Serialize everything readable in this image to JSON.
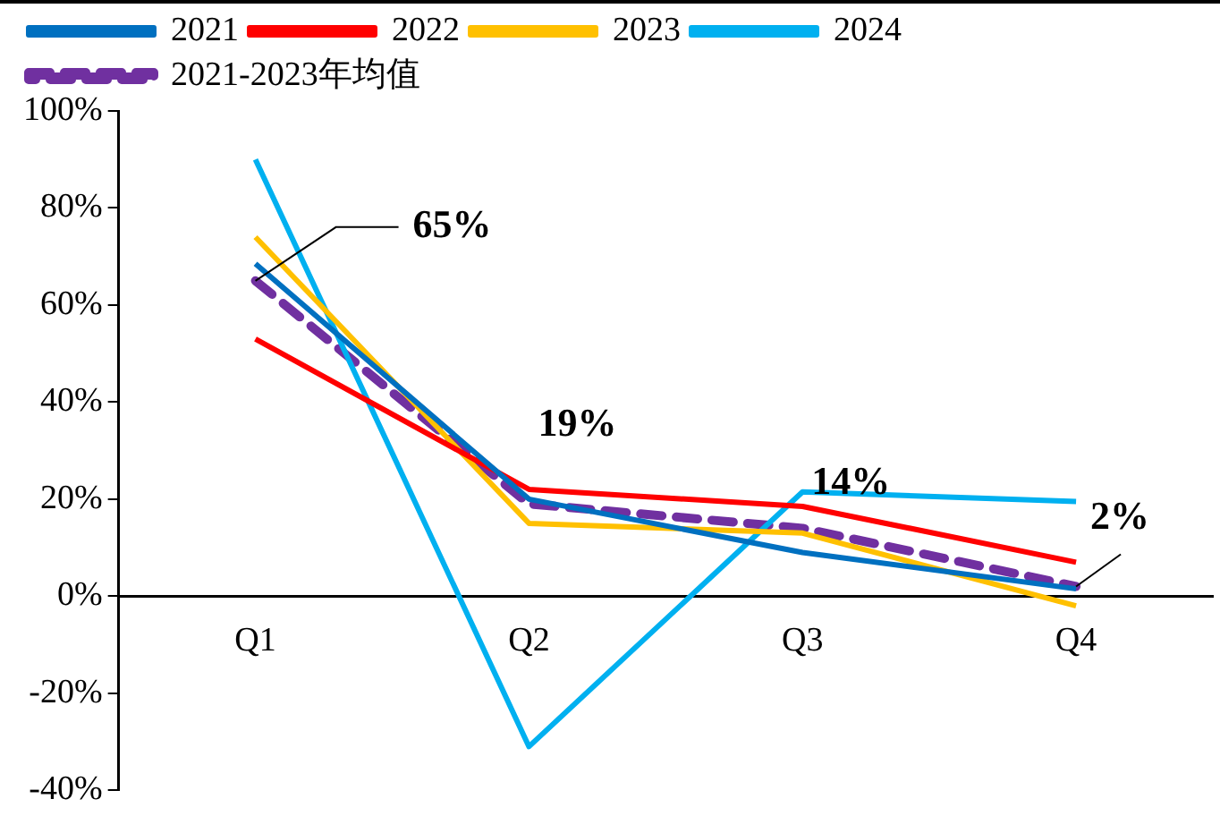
{
  "chart_data": {
    "type": "line",
    "categories": [
      "Q1",
      "Q2",
      "Q3",
      "Q4"
    ],
    "series": [
      {
        "name": "2021",
        "color": "#0070c0",
        "values": [
          68.5,
          20,
          9,
          1.5
        ]
      },
      {
        "name": "2022",
        "color": "#ff0000",
        "values": [
          53,
          22,
          18.5,
          7
        ]
      },
      {
        "name": "2023",
        "color": "#ffc000",
        "values": [
          74,
          15,
          13,
          -2
        ]
      },
      {
        "name": "2024",
        "color": "#00b0f0",
        "values": [
          90,
          -31,
          21.5,
          19.5
        ]
      },
      {
        "name": "2021-2023年均值",
        "color": "#7030a0",
        "values": [
          65,
          19,
          14,
          2
        ],
        "line_style": "dashed"
      }
    ],
    "ylim": [
      -40,
      100
    ],
    "yticks": [
      {
        "value": -40,
        "label": "-40%"
      },
      {
        "value": -20,
        "label": "-20%"
      },
      {
        "value": 0,
        "label": "0%"
      },
      {
        "value": 20,
        "label": "20%"
      },
      {
        "value": 40,
        "label": "40%"
      },
      {
        "value": 60,
        "label": "60%"
      },
      {
        "value": 80,
        "label": "80%"
      },
      {
        "value": 100,
        "label": "100%"
      }
    ],
    "annotations": [
      {
        "text": "65%",
        "x": "Q1",
        "y": 65
      },
      {
        "text": "19%",
        "x": "Q2",
        "y": 19
      },
      {
        "text": "14%",
        "x": "Q3",
        "y": 14
      },
      {
        "text": "2%",
        "x": "Q4",
        "y": 2
      }
    ],
    "grid": false,
    "legend": "top",
    "marker": "none",
    "line_style": "solid"
  }
}
